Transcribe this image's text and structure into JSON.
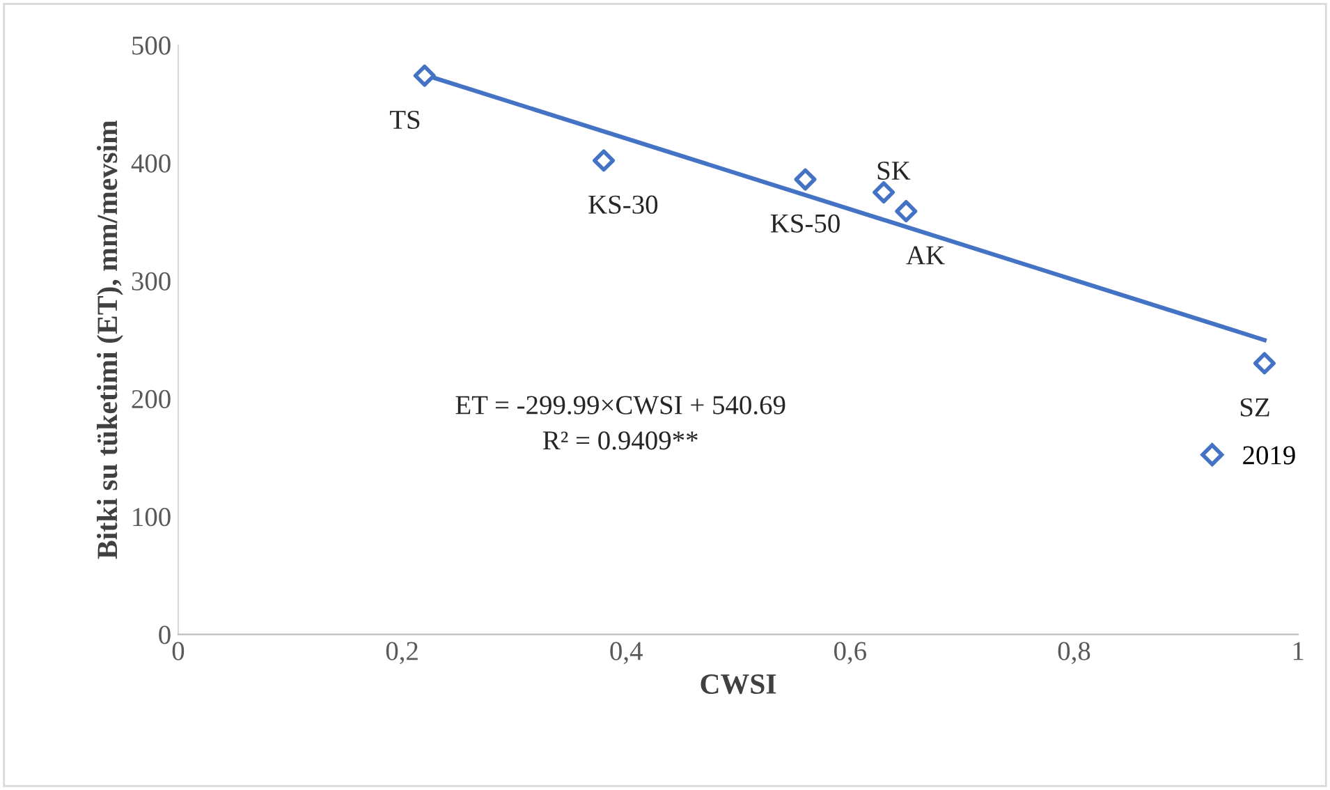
{
  "chart_data": {
    "type": "scatter",
    "xlabel": "CWSI",
    "ylabel": "Bitki su tüketimi (ET), mm/mevsim",
    "x": [
      0.22,
      0.38,
      0.56,
      0.63,
      0.65,
      0.97
    ],
    "series": [
      {
        "name": "2019",
        "color": "#4472c4",
        "marker": "diamond",
        "values": [
          474,
          402,
          386,
          375,
          359,
          230
        ]
      },
      {
        "type": "line",
        "color": "#4472c4",
        "marker": "none",
        "x": [
          0.22,
          0.97
        ],
        "values": [
          474.7,
          249.7
        ]
      }
    ],
    "annotations": [
      {
        "text": "TS",
        "x": 0.22,
        "y": 474
      },
      {
        "text": "KS-30",
        "x": 0.38,
        "y": 402
      },
      {
        "text": "KS-50",
        "x": 0.56,
        "y": 386
      },
      {
        "text": "SK",
        "x": 0.63,
        "y": 375
      },
      {
        "text": "AK",
        "x": 0.65,
        "y": 359
      },
      {
        "text": "SZ",
        "x": 0.97,
        "y": 230
      },
      "ET = -299.99×CWSI + 540.69",
      "R² = 0.9409**"
    ],
    "xlim": [
      0,
      1
    ],
    "ylim": [
      0,
      500
    ],
    "xticks": [
      0,
      {
        "value": 0.2,
        "label": "0,2"
      },
      {
        "value": 0.4,
        "label": "0,4"
      },
      {
        "value": 0.6,
        "label": "0,6"
      },
      {
        "value": 0.8,
        "label": "0,8"
      },
      1
    ],
    "yticks": [
      0,
      100,
      200,
      300,
      400,
      500
    ],
    "legend": "right",
    "grid": false
  }
}
